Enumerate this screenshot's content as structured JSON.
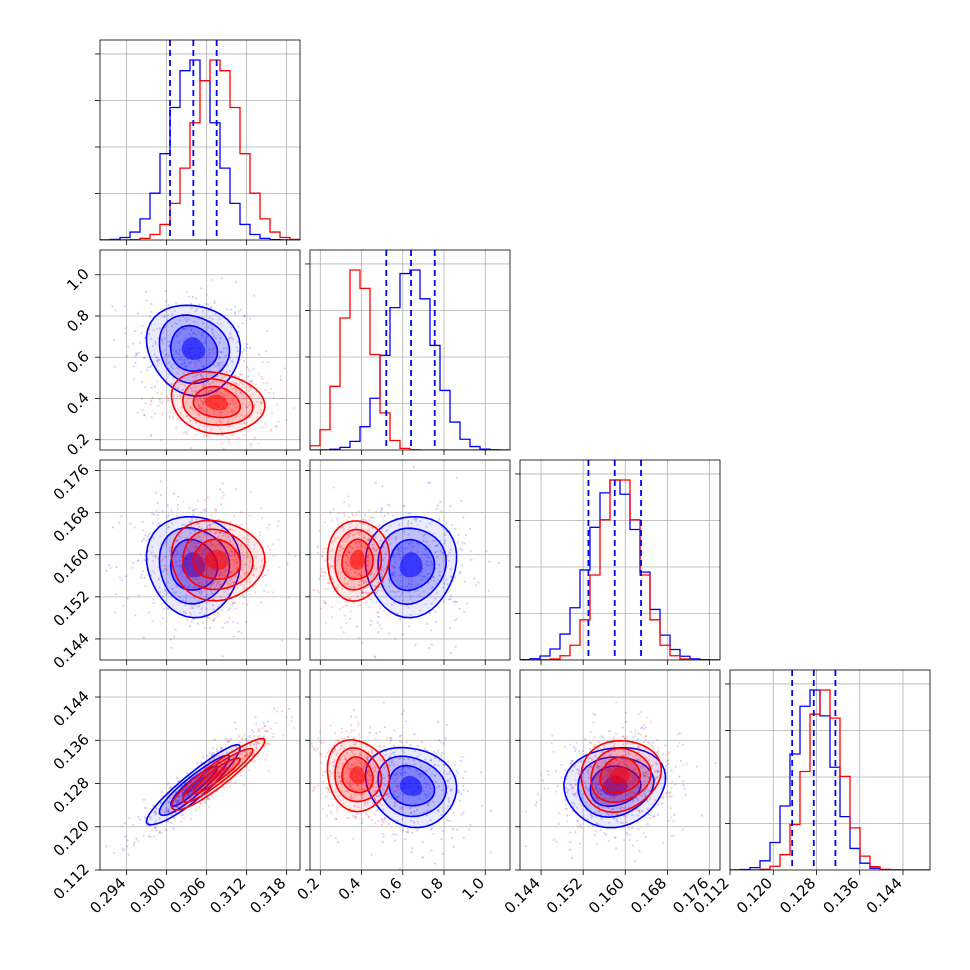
{
  "chart_data": {
    "type": "corner",
    "grid": true,
    "series": [
      {
        "name": "",
        "color": "#0000ff",
        "mean": [
          0.304,
          0.64,
          0.158,
          0.1275
        ],
        "std": [
          0.0035,
          0.11,
          0.0048,
          0.0037
        ],
        "corr": [
          [
            1,
            -0.1,
            -0.05,
            0.92
          ],
          [
            -0.1,
            1,
            0.05,
            -0.15
          ],
          [
            -0.05,
            0.05,
            1,
            0.1
          ],
          [
            0.92,
            -0.15,
            0.1,
            1
          ]
        ]
      },
      {
        "name": "",
        "color": "#ff0000",
        "mean": [
          0.3075,
          0.38,
          0.159,
          0.1295
        ],
        "std": [
          0.0035,
          0.075,
          0.0038,
          0.0033
        ],
        "corr": [
          [
            1,
            -0.15,
            -0.05,
            0.92
          ],
          [
            -0.15,
            1,
            0.05,
            -0.1
          ],
          [
            -0.05,
            0.05,
            1,
            0.1
          ],
          [
            0.92,
            -0.1,
            0.1,
            1
          ]
        ]
      }
    ],
    "quantiles": [
      [
        0.3005,
        0.304,
        0.3075
      ],
      [
        0.52,
        0.64,
        0.755
      ],
      [
        0.153,
        0.158,
        0.163
      ],
      [
        0.1235,
        0.1275,
        0.1315
      ]
    ],
    "quantile_color": "#0000ff",
    "axes": [
      {
        "range": [
          0.29,
          0.32
        ],
        "ticks": [
          "0.294",
          "0.300",
          "0.306",
          "0.312",
          "0.318"
        ]
      },
      {
        "range": [
          0.15,
          1.12
        ],
        "ticks": [
          "0.2",
          "0.4",
          "0.6",
          "0.8",
          "1.0"
        ]
      },
      {
        "range": [
          0.14,
          0.178
        ],
        "ticks": [
          "0.144",
          "0.152",
          "0.160",
          "0.168",
          "0.176"
        ]
      },
      {
        "range": [
          0.112,
          0.149
        ],
        "ticks": [
          "0.112",
          "0.120",
          "0.128",
          "0.136",
          "0.144"
        ]
      }
    ],
    "contour_levels": [
      0.5,
      1.0,
      1.5,
      2.0
    ]
  }
}
